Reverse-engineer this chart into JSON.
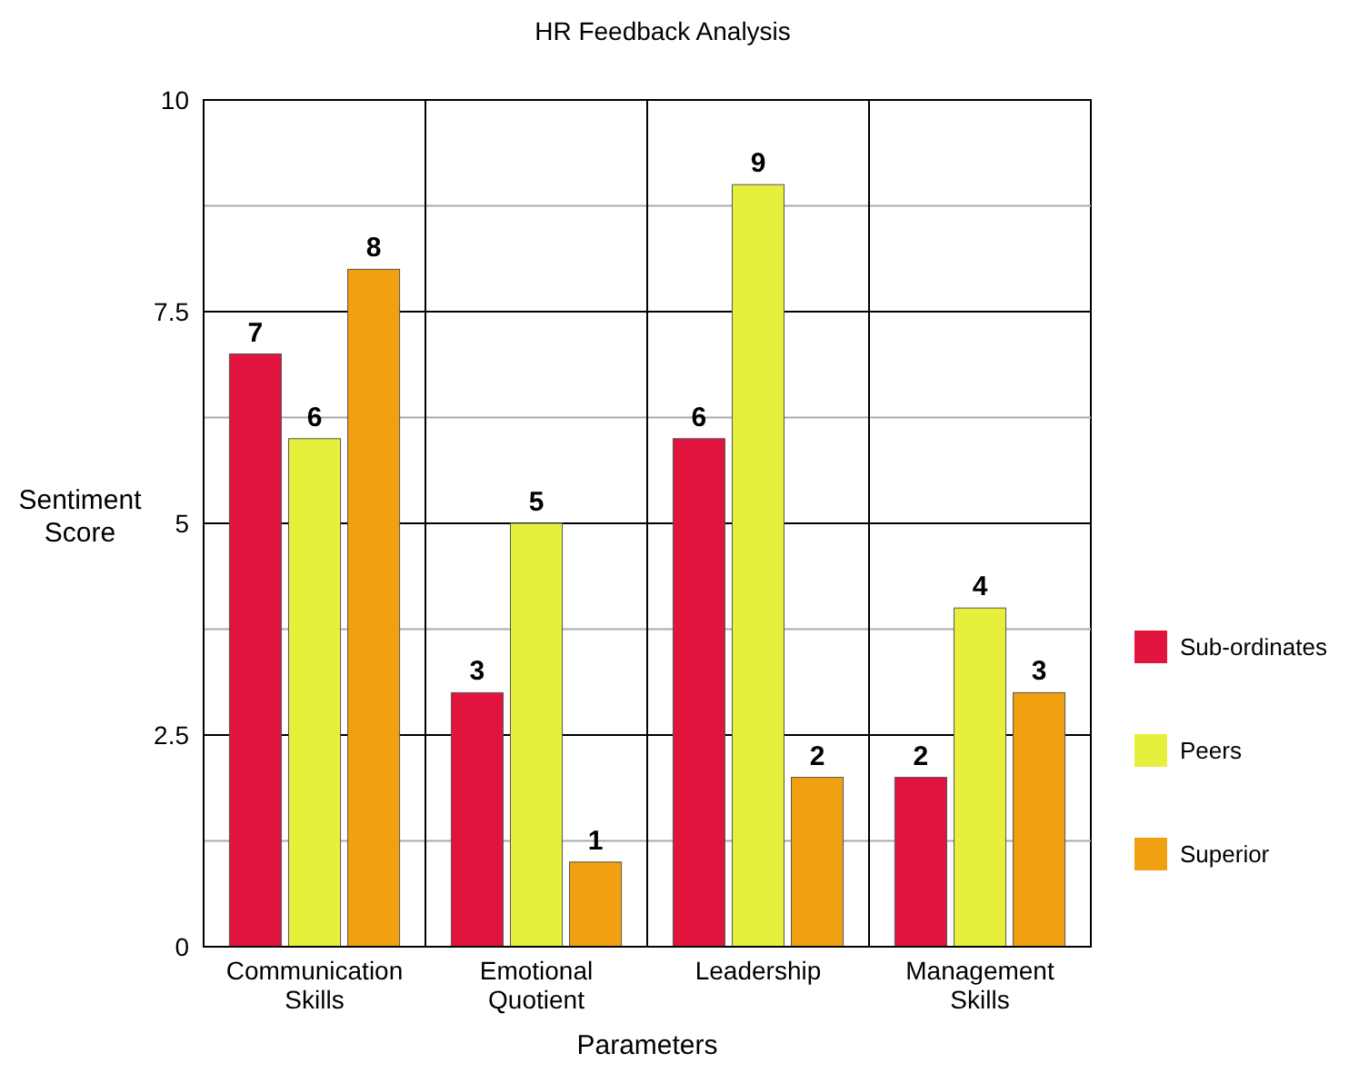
{
  "chart_data": {
    "type": "bar",
    "title": "HR Feedback Analysis",
    "xlabel": "Parameters",
    "ylabel": "Sentiment Score",
    "categories": [
      "Communication Skills",
      "Emotional Quotient",
      "Leadership",
      "Management Skills"
    ],
    "series": [
      {
        "name": "Sub-ordinates",
        "color": "#e0143c",
        "values": [
          7,
          3,
          6,
          2
        ]
      },
      {
        "name": "Peers",
        "color": "#e6f03c",
        "values": [
          6,
          5,
          9,
          4
        ]
      },
      {
        "name": "Superior",
        "color": "#f0a010",
        "values": [
          8,
          1,
          2,
          3
        ]
      }
    ],
    "ylim": [
      0,
      10
    ],
    "yticks": [
      0,
      {
        "value": 1.25,
        "label": null
      },
      2.5,
      {
        "value": 3.75,
        "label": null
      },
      5,
      {
        "value": 6.25,
        "label": null
      },
      7.5,
      {
        "value": 8.75,
        "label": null
      },
      10
    ],
    "grid": true,
    "legend": "right",
    "data_labels": true
  }
}
